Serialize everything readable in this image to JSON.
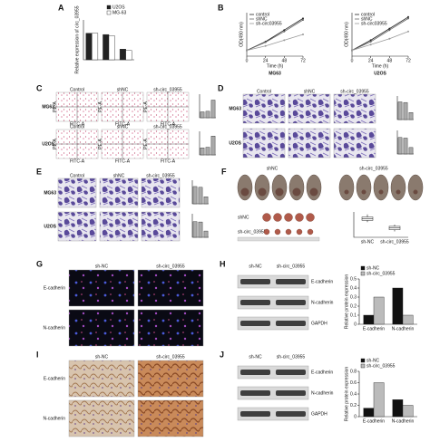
{
  "panels": {
    "A": {
      "letter": "A",
      "chart": {
        "type": "bar",
        "ylabel": "Relative expression of circ_03955",
        "ylim": [
          0,
          1.5
        ],
        "series": [
          {
            "name": "U2OS",
            "color": "#222222",
            "values": [
              1,
              0.95,
              0.4
            ]
          },
          {
            "name": "MG-63",
            "color": "#ffffff",
            "values": [
              1,
              0.9,
              0.35
            ]
          }
        ]
      }
    },
    "B": {
      "letter": "B",
      "charts": [
        {
          "type": "line",
          "title": "MG63",
          "xlabel": "Time (h)",
          "ylabel": "OD(490 nm)",
          "x": [
            0,
            24,
            48,
            72
          ],
          "xlim": [
            0,
            72
          ],
          "xticks": [
            0,
            24,
            48,
            72
          ],
          "ylim": [
            0,
            1.5
          ],
          "series": [
            {
              "name": "control",
              "color": "#222222",
              "values": [
                0.2,
                0.5,
                0.9,
                1.3
              ]
            },
            {
              "name": "shNC",
              "color": "#666666",
              "values": [
                0.2,
                0.48,
                0.85,
                1.25
              ]
            },
            {
              "name": "sh-circ03955",
              "color": "#999999",
              "values": [
                0.2,
                0.35,
                0.55,
                0.75
              ]
            }
          ]
        },
        {
          "type": "line",
          "title": "U2OS",
          "xlabel": "Time (h)",
          "ylabel": "OD(490 nm)",
          "x": [
            0,
            24,
            48,
            72
          ],
          "xlim": [
            0,
            72
          ],
          "xticks": [
            0,
            24,
            48,
            72
          ],
          "ylim": [
            0,
            1.5
          ],
          "series": [
            {
              "name": "control",
              "color": "#222222",
              "values": [
                0.2,
                0.55,
                0.95,
                1.35
              ]
            },
            {
              "name": "shNC",
              "color": "#666666",
              "values": [
                0.2,
                0.5,
                0.9,
                1.3
              ]
            },
            {
              "name": "sh-circ03955",
              "color": "#999999",
              "values": [
                0.2,
                0.4,
                0.6,
                0.85
              ]
            }
          ]
        }
      ]
    },
    "C": {
      "letter": "C",
      "columns": [
        "Control",
        "shNC",
        "sh-circ_03955"
      ],
      "rows": [
        "MG63",
        "U2OS"
      ],
      "xlabel": "FITC-A",
      "ylabel": "PE-A",
      "charts": [
        {
          "type": "bar",
          "ylim": [
            0,
            20
          ],
          "color": "#aaaaaa",
          "values": [
            5,
            5.5,
            15
          ]
        },
        {
          "type": "bar",
          "ylim": [
            0,
            20
          ],
          "color": "#aaaaaa",
          "values": [
            6,
            6.5,
            16
          ]
        }
      ]
    },
    "D": {
      "letter": "D",
      "columns": [
        "Control",
        "shNC",
        "sh-circ_03955"
      ],
      "rows": [
        "MG63",
        "U2OS"
      ],
      "charts": [
        {
          "type": "bar",
          "ylim": [
            0,
            400
          ],
          "color": "#aaaaaa",
          "values": [
            300,
            290,
            120
          ]
        },
        {
          "type": "bar",
          "ylim": [
            0,
            400
          ],
          "color": "#aaaaaa",
          "values": [
            280,
            270,
            110
          ]
        }
      ]
    },
    "E": {
      "letter": "E",
      "columns": [
        "Control",
        "shNC",
        "sh-circ_03955"
      ],
      "rows": [
        "MG63",
        "U2OS"
      ],
      "charts": [
        {
          "type": "bar",
          "ylim": [
            0,
            300
          ],
          "color": "#aaaaaa",
          "values": [
            220,
            210,
            90
          ]
        },
        {
          "type": "bar",
          "ylim": [
            0,
            300
          ],
          "color": "#aaaaaa",
          "values": [
            200,
            195,
            80
          ]
        }
      ]
    },
    "F": {
      "letter": "F",
      "groups": [
        "shNC",
        "sh-circ_03955"
      ],
      "chart": {
        "type": "box",
        "categories": [
          "sh-NC",
          "sh-circ_03955"
        ],
        "ylim": [
          0,
          1.5
        ],
        "boxes": [
          {
            "low": 0.9,
            "q1": 1.0,
            "median": 1.1,
            "q3": 1.2,
            "high": 1.35
          },
          {
            "low": 0.35,
            "q1": 0.45,
            "median": 0.55,
            "q3": 0.65,
            "high": 0.75
          }
        ]
      }
    },
    "G": {
      "letter": "G",
      "columns": [
        "sh-NC",
        "sh-circ_03955"
      ],
      "rows": [
        "E-cadherin",
        "N-cadherin"
      ]
    },
    "H": {
      "letter": "H",
      "columns": [
        "sh-NC",
        "sh-circ_03955"
      ],
      "rows": [
        "E-cadherin",
        "N-cadherin",
        "GAPDH"
      ],
      "chart": {
        "type": "bar",
        "ylabel": "Relative protein expression",
        "categories": [
          "E-cadherin",
          "N-cadherin"
        ],
        "ylim": [
          0,
          0.5
        ],
        "yticks": [
          0,
          0.1,
          0.2,
          0.3,
          0.4,
          0.5
        ],
        "series": [
          {
            "name": "sh-NC",
            "color": "#111111",
            "values": [
              0.1,
              0.4
            ]
          },
          {
            "name": "sh-circ_03955",
            "color": "#bbbbbb",
            "values": [
              0.3,
              0.1
            ]
          }
        ]
      }
    },
    "I": {
      "letter": "I",
      "columns": [
        "sh-NC",
        "sh-circ_03955"
      ],
      "rows": [
        "E-cadherin",
        "N-cadherin"
      ]
    },
    "J": {
      "letter": "J",
      "columns": [
        "sh-NC",
        "sh-circ_03955"
      ],
      "rows": [
        "E-cadherin",
        "N-cadherin",
        "GAPDH"
      ],
      "chart": {
        "type": "bar",
        "ylabel": "Relative protein expression",
        "categories": [
          "E-cadherin",
          "N-cadherin"
        ],
        "ylim": [
          0,
          0.8
        ],
        "yticks": [
          0,
          0.2,
          0.4,
          0.6,
          0.8
        ],
        "series": [
          {
            "name": "sh-NC",
            "color": "#111111",
            "values": [
              0.15,
              0.3
            ]
          },
          {
            "name": "sh-circ_03955",
            "color": "#bbbbbb",
            "values": [
              0.6,
              0.2
            ]
          }
        ]
      }
    }
  }
}
